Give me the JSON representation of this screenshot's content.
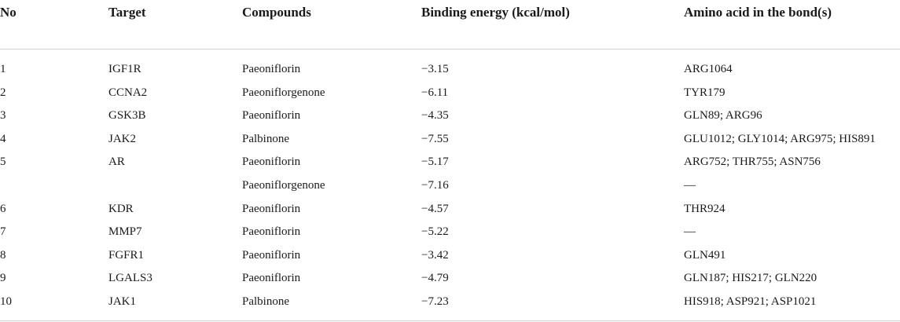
{
  "table": {
    "header": [
      "No",
      "Target",
      "Compounds",
      "Binding energy (kcal/mol)",
      "Amino acid in the bond(s)"
    ],
    "rows": [
      [
        "1",
        "IGF1R",
        "Paeoniflorin",
        "−3.15",
        "ARG1064"
      ],
      [
        "2",
        "CCNA2",
        "Paeoniflorgenone",
        "−6.11",
        "TYR179"
      ],
      [
        "3",
        "GSK3B",
        "Paeoniflorin",
        "−4.35",
        "GLN89; ARG96"
      ],
      [
        "4",
        "JAK2",
        "Palbinone",
        "−7.55",
        "GLU1012; GLY1014; ARG975; HIS891"
      ],
      [
        "5",
        "AR",
        "Paeoniflorin",
        "−5.17",
        "ARG752; THR755; ASN756"
      ],
      [
        null,
        null,
        "Paeoniflorgenone",
        "−7.16",
        "—"
      ],
      [
        "6",
        "KDR",
        "Paeoniflorin",
        "−4.57",
        "THR924"
      ],
      [
        "7",
        "MMP7",
        "Paeoniflorin",
        "−5.22",
        "—"
      ],
      [
        "8",
        "FGFR1",
        "Paeoniflorin",
        "−3.42",
        "GLN491"
      ],
      [
        "9",
        "LGALS3",
        "Paeoniflorin",
        "−4.79",
        "GLN187; HIS217; GLN220"
      ],
      [
        "10",
        "JAK1",
        "Palbinone",
        "−7.23",
        "HIS918; ASP921; ASP1021"
      ]
    ]
  }
}
